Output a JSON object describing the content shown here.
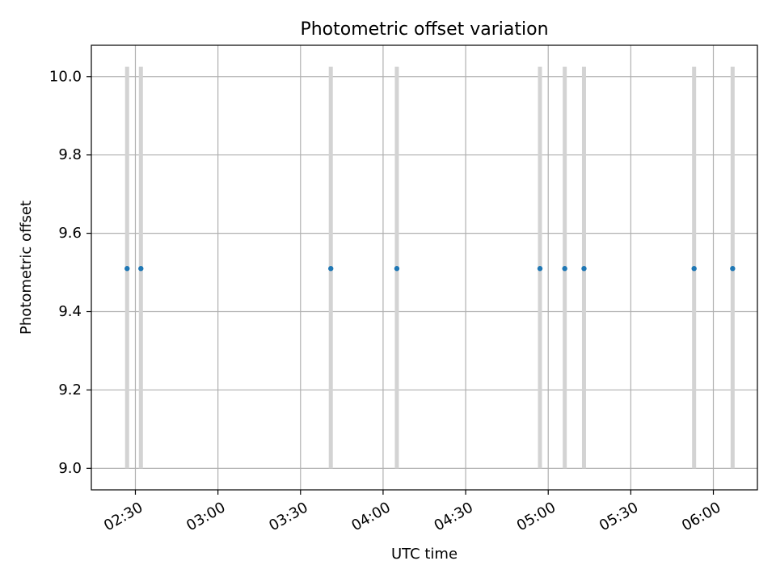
{
  "chart_data": {
    "type": "scatter",
    "title": "Photometric offset variation",
    "xlabel": "UTC time",
    "ylabel": "Photometric offset",
    "x_tick_labels": [
      "02:30",
      "03:00",
      "03:30",
      "04:00",
      "04:30",
      "05:00",
      "05:30",
      "06:00"
    ],
    "x_ticks": [
      "02:30",
      "03:00",
      "03:30",
      "04:00",
      "04:30",
      "05:00",
      "05:30",
      "06:00"
    ],
    "y_ticks": [
      9.0,
      9.2,
      9.4,
      9.6,
      9.8,
      10.0
    ],
    "y_tick_labels": [
      "9.0",
      "9.2",
      "9.4",
      "9.6",
      "9.8",
      "10.0"
    ],
    "xlim": [
      "02:14",
      "06:16"
    ],
    "ylim": [
      8.945,
      10.08
    ],
    "grid": true,
    "series": [
      {
        "x": [
          "02:27",
          "02:32",
          "03:41",
          "04:05",
          "04:57",
          "05:06",
          "05:13",
          "05:53",
          "06:07"
        ],
        "y": [
          9.51,
          9.51,
          9.51,
          9.51,
          9.51,
          9.51,
          9.51,
          9.51,
          9.51
        ],
        "yerr_low": [
          9.0,
          9.0,
          9.0,
          9.0,
          9.0,
          9.0,
          9.0,
          9.0,
          9.0
        ],
        "yerr_high": [
          10.025,
          10.025,
          10.025,
          10.025,
          10.025,
          10.025,
          10.025,
          10.025,
          10.025
        ],
        "color": "#1f77b4",
        "errorbar_color": "#d3d3d3"
      }
    ]
  }
}
